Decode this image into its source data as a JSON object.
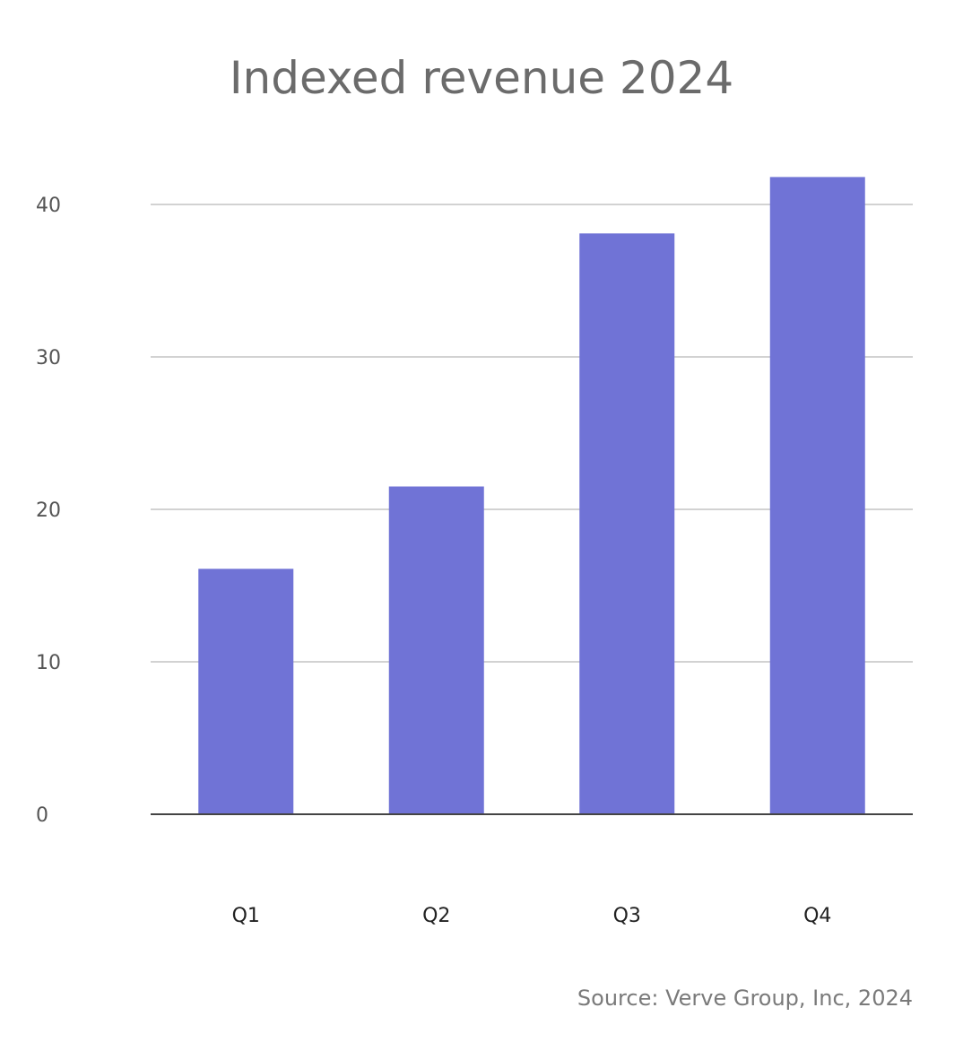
{
  "chart_data": {
    "type": "bar",
    "title": "Indexed revenue 2024",
    "categories": [
      "Q1",
      "Q2",
      "Q3",
      "Q4"
    ],
    "values": [
      16.1,
      21.5,
      38.1,
      41.8
    ],
    "xlabel": "",
    "ylabel": "",
    "ylim": [
      0,
      40
    ],
    "yticks": [
      0,
      10,
      20,
      30,
      40
    ],
    "grid": true,
    "legend": "none",
    "bar_color": "#7073d6"
  },
  "source": "Source: Verve Group, Inc, 2024"
}
